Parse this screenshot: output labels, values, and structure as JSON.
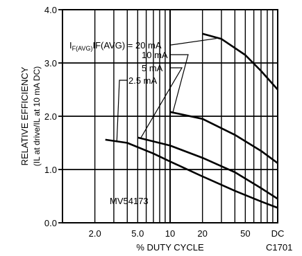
{
  "chart_data": {
    "type": "line",
    "x_scale": "log",
    "x_ticks": [
      {
        "value": 2,
        "label": "2.0"
      },
      {
        "value": 5,
        "label": "5.0"
      },
      {
        "value": 10,
        "label": "10"
      },
      {
        "value": 20,
        "label": "20"
      },
      {
        "value": 50,
        "label": "50"
      },
      {
        "value": 100,
        "label": "DC"
      }
    ],
    "y_ticks": [
      {
        "value": 0,
        "label": "0.0"
      },
      {
        "value": 1,
        "label": "1.0"
      },
      {
        "value": 2,
        "label": "2.0"
      },
      {
        "value": 3,
        "label": "3.0"
      },
      {
        "value": 4,
        "label": "4.0"
      }
    ],
    "xlim": [
      1,
      100
    ],
    "ylim": [
      0,
      4
    ],
    "grid": true,
    "xlabel": "% DUTY CYCLE",
    "ylabel_main": "RELATIVE EFFICIENCY",
    "ylabel_sub": "(IL at drive/IL at 10 mA DC)",
    "part_number": "MV54173",
    "figure_id": "C1701",
    "legend_prefix": "IF(AVG) = ",
    "series": [
      {
        "name": "20 mA",
        "x": [
          20,
          30,
          50,
          70,
          100
        ],
        "y": [
          3.55,
          3.45,
          3.15,
          2.85,
          2.5
        ]
      },
      {
        "name": "10 mA",
        "x": [
          10,
          20,
          40,
          70,
          100
        ],
        "y": [
          2.08,
          1.95,
          1.65,
          1.35,
          1.12
        ]
      },
      {
        "name": "5 mA",
        "x": [
          5,
          10,
          20,
          40,
          70,
          100
        ],
        "y": [
          1.6,
          1.45,
          1.22,
          0.95,
          0.65,
          0.45
        ]
      },
      {
        "name": "2.5 mA",
        "x": [
          2.5,
          4,
          7,
          10,
          20,
          40,
          70,
          100
        ],
        "y": [
          1.56,
          1.5,
          1.3,
          1.15,
          0.87,
          0.6,
          0.4,
          0.28
        ]
      }
    ]
  }
}
